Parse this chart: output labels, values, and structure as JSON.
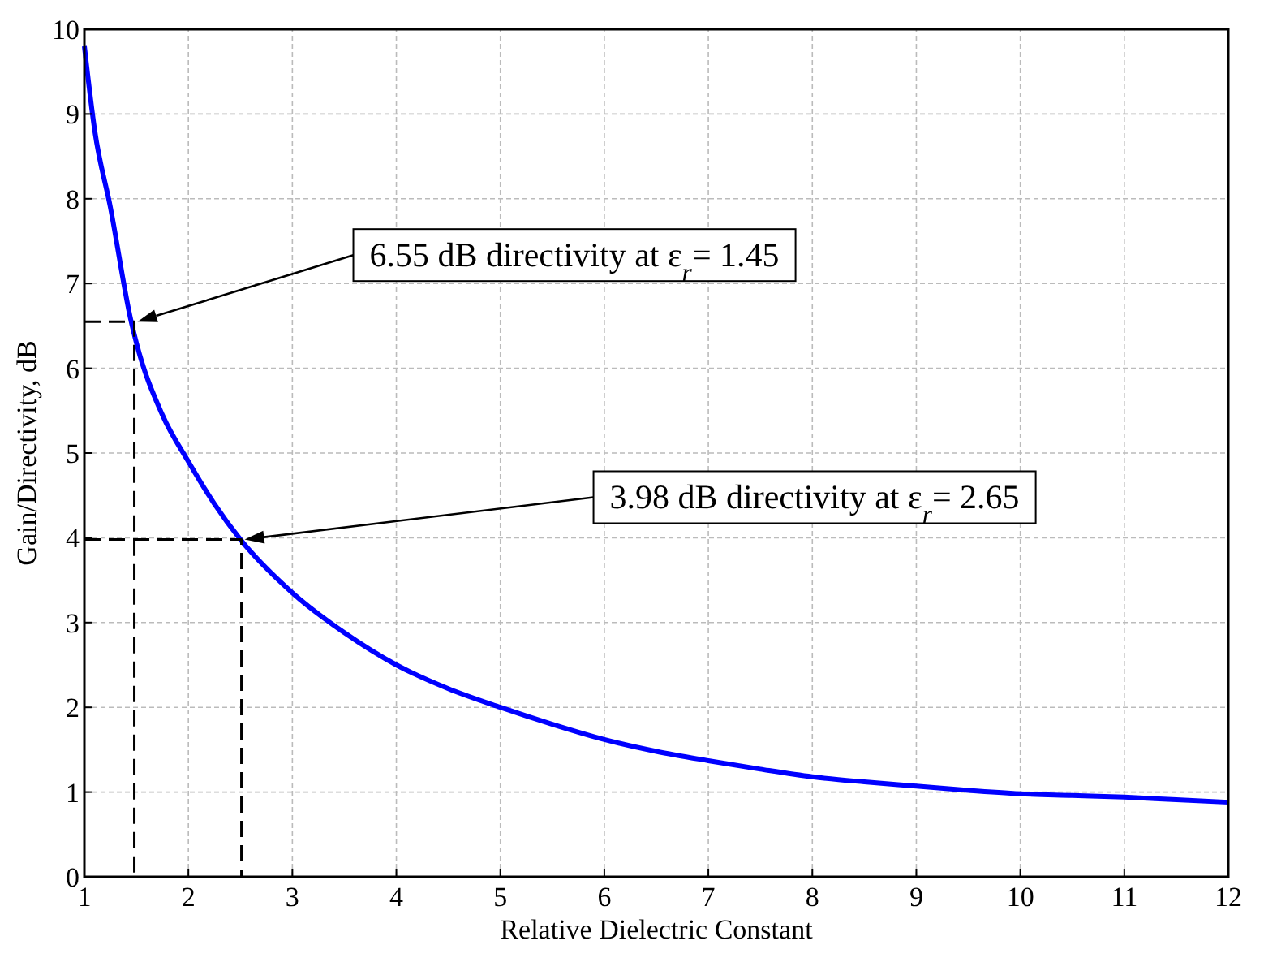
{
  "chart_data": {
    "type": "line",
    "xlabel": "Relative Dielectric Constant",
    "ylabel": "Gain/Directivity, dB",
    "xlim": [
      1,
      12
    ],
    "ylim": [
      0,
      10
    ],
    "xticks": [
      1,
      2,
      3,
      4,
      5,
      6,
      7,
      8,
      9,
      10,
      11,
      12
    ],
    "yticks": [
      0,
      1,
      2,
      3,
      4,
      5,
      6,
      7,
      8,
      9,
      10
    ],
    "grid": true,
    "series": [
      {
        "color": "#0000ff",
        "line_style": "solid",
        "x": [
          1,
          1.1,
          1.25,
          1.45,
          1.5,
          1.75,
          2,
          2.25,
          2.5,
          3,
          3.5,
          4,
          4.5,
          5,
          5.5,
          6,
          6.5,
          7,
          7.5,
          8,
          8.5,
          9,
          9.5,
          10,
          10.5,
          11,
          11.5,
          12
        ],
        "values": [
          9.8,
          8.8,
          7.9,
          6.55,
          6.3,
          5.45,
          4.9,
          4.4,
          3.98,
          3.35,
          2.88,
          2.5,
          2.22,
          2.0,
          1.8,
          1.62,
          1.48,
          1.37,
          1.27,
          1.18,
          1.12,
          1.07,
          1.02,
          0.98,
          0.96,
          0.94,
          0.91,
          0.88
        ]
      },
      {
        "color": "#000000",
        "line_style": "dashed",
        "x": [
          1,
          1.48,
          1.48
        ],
        "values": [
          6.55,
          6.55,
          0
        ]
      },
      {
        "color": "#000000",
        "line_style": "dashed",
        "x": [
          1,
          2.51,
          2.51
        ],
        "values": [
          3.98,
          3.98,
          0
        ]
      }
    ],
    "annotations": [
      "6.55 dB directivity at ε$_{r}$= 1.45",
      "3.98 dB directivity at ε$_{r}$= 2.65"
    ]
  }
}
